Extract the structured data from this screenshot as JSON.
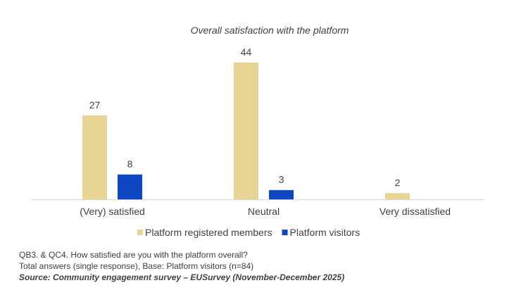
{
  "chart_data": {
    "type": "bar",
    "title": "Overall satisfaction with the platform",
    "categories": [
      "(Very) satisfied",
      "Neutral",
      "Very dissatisfied"
    ],
    "series": [
      {
        "name": "Platform registered members",
        "color": "#E8D596",
        "values": [
          27,
          44,
          2
        ]
      },
      {
        "name": "Platform visitors",
        "color": "#0E47C4",
        "values": [
          8,
          3,
          null
        ]
      }
    ],
    "xlabel": "",
    "ylabel": "",
    "ylim": [
      0,
      44
    ],
    "grid": false,
    "legend": "bottom",
    "data_labels": true
  },
  "notes": {
    "question": "QB3. & QC4. How satisfied are you with the platform overall?",
    "base": "Total answers (single response), Base: Platform visitors (n=84)",
    "source": "Source: Community engagement survey – EUSurvey (November-December 2025)"
  }
}
